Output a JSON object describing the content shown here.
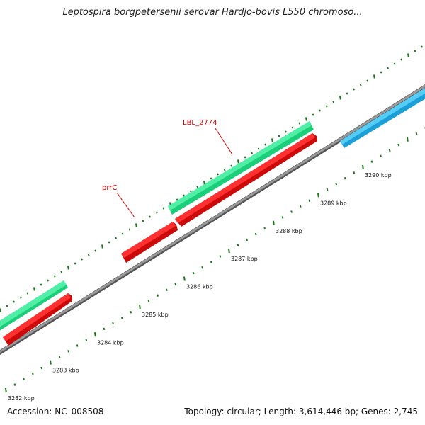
{
  "title": "Leptospira borgpetersenii serovar Hardjo-bovis L550 chromoso...",
  "footer": {
    "accession": "Accession: NC_008508",
    "topology": "Topology: circular; Length: 3,614,446 bp; Genes: 2,745"
  },
  "scale": {
    "labels": [
      "3282 kbp",
      "3283 kbp",
      "3284 kbp",
      "3285 kbp",
      "3286 kbp",
      "3287 kbp",
      "3288 kbp",
      "3289 kbp",
      "3290 kbp"
    ]
  },
  "gene_labels": [
    "prrC",
    "LBL_2774"
  ],
  "colors": {
    "backbone": "#7a7a7a",
    "forward_gene": "#22dd88",
    "reverse_gene": "#ee1111",
    "other_gene": "#33bbee",
    "label_red": "#cc0000",
    "tick_green": "#1a7a1a"
  }
}
